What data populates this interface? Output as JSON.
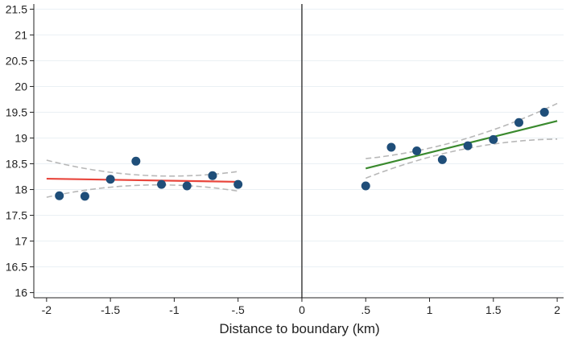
{
  "chart_data": {
    "type": "scatter",
    "title": "",
    "xlabel": "Distance to boundary (km)",
    "ylabel": "",
    "xlim": [
      -2.1,
      2.05
    ],
    "ylim": [
      15.9,
      21.6
    ],
    "xticks": [
      {
        "value": -2,
        "label": "-2"
      },
      {
        "value": -1.5,
        "label": "-1.5"
      },
      {
        "value": -1,
        "label": "-1"
      },
      {
        "value": -0.5,
        "label": "-.5"
      },
      {
        "value": 0,
        "label": "0"
      },
      {
        "value": 0.5,
        "label": ".5"
      },
      {
        "value": 1,
        "label": "1"
      },
      {
        "value": 1.5,
        "label": "1.5"
      },
      {
        "value": 2,
        "label": "2"
      }
    ],
    "yticks": [
      {
        "value": 16,
        "label": "16"
      },
      {
        "value": 16.5,
        "label": "16.5"
      },
      {
        "value": 17,
        "label": "17"
      },
      {
        "value": 17.5,
        "label": "17.5"
      },
      {
        "value": 18,
        "label": "18"
      },
      {
        "value": 18.5,
        "label": "18.5"
      },
      {
        "value": 19,
        "label": "19"
      },
      {
        "value": 19.5,
        "label": "19.5"
      },
      {
        "value": 20,
        "label": "20"
      },
      {
        "value": 20.5,
        "label": "20.5"
      },
      {
        "value": 21,
        "label": "21"
      },
      {
        "value": 21.5,
        "label": "21.5"
      }
    ],
    "grid": "horizontal",
    "cutoff_line": 0,
    "points": [
      {
        "x": -1.9,
        "y": 17.88
      },
      {
        "x": -1.7,
        "y": 17.87
      },
      {
        "x": -1.5,
        "y": 18.2
      },
      {
        "x": -1.3,
        "y": 18.55
      },
      {
        "x": -1.1,
        "y": 18.1
      },
      {
        "x": -0.9,
        "y": 18.07
      },
      {
        "x": -0.7,
        "y": 18.27
      },
      {
        "x": -0.5,
        "y": 18.1
      },
      {
        "x": 0.5,
        "y": 18.07
      },
      {
        "x": 0.7,
        "y": 18.82
      },
      {
        "x": 0.9,
        "y": 18.75
      },
      {
        "x": 1.1,
        "y": 18.58
      },
      {
        "x": 1.3,
        "y": 18.85
      },
      {
        "x": 1.5,
        "y": 18.97
      },
      {
        "x": 1.7,
        "y": 19.3
      },
      {
        "x": 1.9,
        "y": 19.5
      }
    ],
    "fits": [
      {
        "side": "left",
        "x": [
          -2,
          -0.5
        ],
        "y": [
          18.21,
          18.15
        ],
        "ci_upper": [
          18.57,
          18.35
        ],
        "ci_lower": [
          17.85,
          17.97
        ]
      },
      {
        "side": "right",
        "x": [
          0.5,
          2
        ],
        "y": [
          18.41,
          19.33
        ],
        "ci_upper": [
          18.6,
          19.67
        ],
        "ci_lower": [
          18.22,
          18.98
        ]
      }
    ],
    "colors": {
      "points": "#1f4e79",
      "left_fit": "#e8453c",
      "right_fit": "#3a8a2e",
      "ci": "#b8b8b8",
      "grid": "#eaf0f4",
      "axis": "#222222"
    }
  }
}
